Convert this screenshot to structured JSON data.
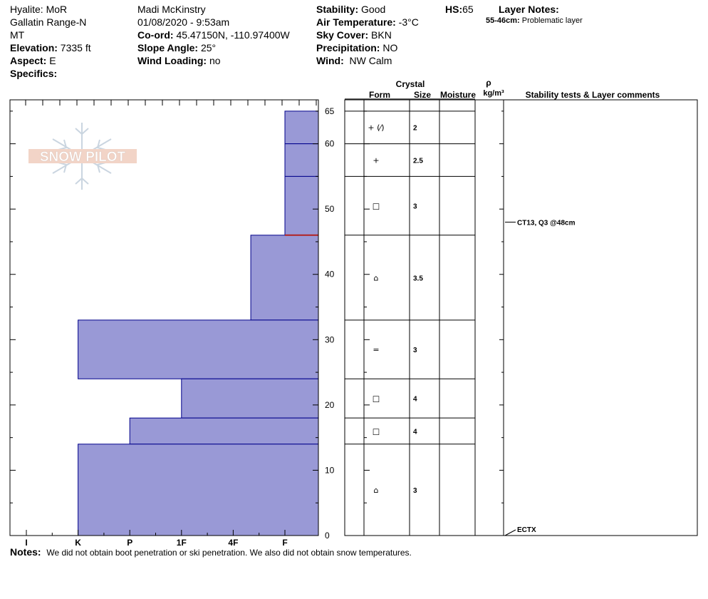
{
  "header": {
    "location": "Hyalite: MoR",
    "range": "Gallatin Range-N",
    "state": "MT",
    "elevation_label": "Elevation:",
    "elevation": "7335 ft",
    "aspect_label": "Aspect:",
    "aspect": "E",
    "specifics_label": "Specifics:",
    "observer": "Madi  McKinstry",
    "datetime": "01/08/2020 - 9:53am",
    "coord_label": "Co-ord:",
    "coord": "45.47150N, -110.97400W",
    "slope_label": "Slope Angle:",
    "slope": "25°",
    "wind_loading_label": "Wind Loading:",
    "wind_loading": "no",
    "stability_label": "Stability:",
    "stability": "Good",
    "air_temp_label": "Air Temperature:",
    "air_temp": "-3°C",
    "sky_label": "Sky Cover:",
    "sky": "BKN",
    "precip_label": "Precipitation:",
    "precip": "NO",
    "wind_label": "Wind:",
    "wind": "NW Calm",
    "hs_label": "HS:",
    "hs": "65",
    "layer_notes_label": "Layer Notes:",
    "layer_note_range": "55-46cm:",
    "layer_note_text": "Problematic layer"
  },
  "logo_text": "SNOW PILOT",
  "table_headers": {
    "crystal": "Crystal",
    "form": "Form",
    "size": "Size",
    "moisture": "Moisture",
    "rho": "ρ",
    "density_unit": "kg/m³",
    "stability": "Stability tests & Layer comments"
  },
  "notes": {
    "label": "Notes:",
    "text": "We did not obtain boot penetration or ski penetration. We also did not obtain snow temperatures."
  },
  "colors": {
    "fill": "#9999d6",
    "edge": "#00008b",
    "weak_layer": "#b22222"
  },
  "chart_data": {
    "type": "bar",
    "orientation": "horizontal",
    "y_label_values": [
      0,
      10,
      20,
      30,
      40,
      50,
      60,
      65
    ],
    "ylim": [
      0,
      65
    ],
    "x_categories": [
      "I",
      "K",
      "P",
      "1F",
      "4F",
      "F"
    ],
    "hardness_scale": [
      "I",
      "K",
      "P",
      "1F",
      "4F",
      "F"
    ],
    "hardness_max": 6,
    "weak_layer_depth": 46,
    "layers": [
      {
        "top": 65,
        "bottom": 60,
        "hardness": "F",
        "hardness_value": 6.0,
        "form": "+ (⁄)",
        "size": "2"
      },
      {
        "top": 60,
        "bottom": 55,
        "hardness": "F",
        "hardness_value": 6.0,
        "form": "+",
        "size": "2.5"
      },
      {
        "top": 55,
        "bottom": 46,
        "hardness": "F",
        "hardness_value": 6.0,
        "form": "□",
        "size": "3"
      },
      {
        "top": 46,
        "bottom": 33,
        "hardness": "F+",
        "hardness_value": 5.34,
        "form": "⌂",
        "size": "3.5"
      },
      {
        "top": 33,
        "bottom": 24,
        "hardness": "P",
        "hardness_value": 2.0,
        "form": "=",
        "size": "3"
      },
      {
        "top": 24,
        "bottom": 18,
        "hardness": "4F-",
        "hardness_value": 4.0,
        "form": "□",
        "size": "4"
      },
      {
        "top": 18,
        "bottom": 14,
        "hardness": "1F-",
        "hardness_value": 3.0,
        "form": "□",
        "size": "4"
      },
      {
        "top": 14,
        "bottom": 0,
        "hardness": "P",
        "hardness_value": 2.0,
        "form": "⌂",
        "size": "3"
      }
    ],
    "tests": [
      {
        "depth": 48,
        "label": "CT13, Q3 @48cm"
      },
      {
        "depth": 0,
        "label": "ECTX"
      }
    ]
  }
}
